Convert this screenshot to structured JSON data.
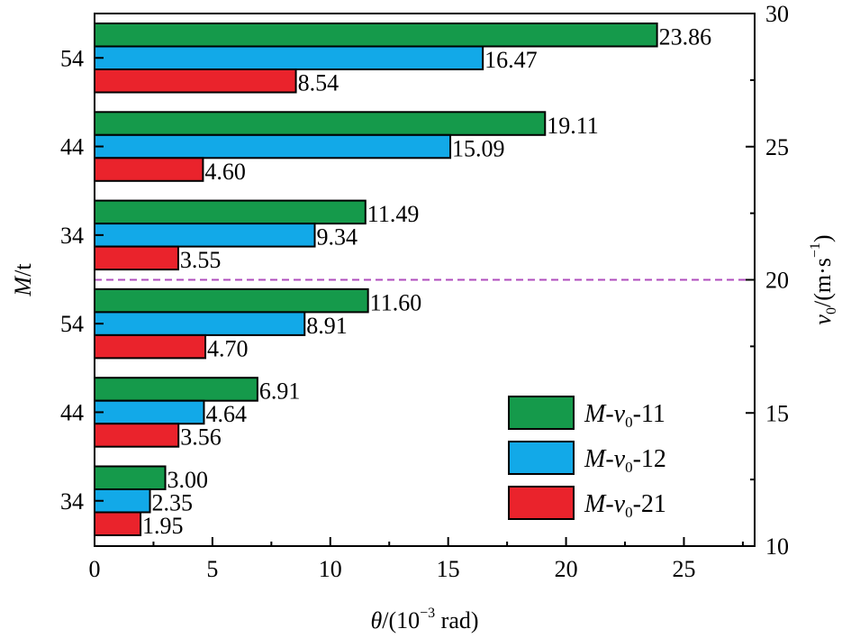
{
  "chart_data": {
    "type": "bar",
    "orientation": "horizontal",
    "groups": [
      "34",
      "44",
      "54",
      "34",
      "44",
      "54"
    ],
    "series": [
      {
        "name": "M-v0-11",
        "color": "#159a4b",
        "values": [
          3.0,
          6.91,
          11.6,
          11.49,
          19.11,
          23.86
        ]
      },
      {
        "name": "M-v0-12",
        "color": "#12a9e8",
        "values": [
          2.35,
          4.64,
          8.91,
          9.34,
          15.09,
          16.47
        ]
      },
      {
        "name": "M-v0-21",
        "color": "#ea232c",
        "values": [
          1.95,
          3.56,
          4.7,
          3.55,
          4.6,
          8.54
        ]
      }
    ],
    "value_labels": {
      "M-v0-11": [
        "3.00",
        "6.91",
        "11.60",
        "11.49",
        "19.11",
        "23.86"
      ],
      "M-v0-12": [
        "2.35",
        "4.64",
        "8.91",
        "9.34",
        "15.09",
        "16.47"
      ],
      "M-v0-21": [
        "1.95",
        "3.56",
        "4.70",
        "3.55",
        "4.60",
        "8.54"
      ]
    },
    "x_axis": {
      "range": [
        0,
        28
      ],
      "ticks": [
        0,
        5,
        10,
        15,
        20,
        25
      ],
      "tick_labels": [
        "0",
        "5",
        "10",
        "15",
        "20",
        "25"
      ]
    },
    "left_axis": {
      "label_main": "M",
      "label_rest": "/t"
    },
    "right_axis": {
      "range": [
        10,
        30
      ],
      "ticks": [
        10,
        15,
        20,
        25,
        30
      ],
      "tick_labels": [
        "10",
        "15",
        "20",
        "25",
        "30"
      ],
      "label_main": "v",
      "label_sub": "0",
      "label_rest": "/(m·s",
      "label_sup": "−1",
      "label_end": ")"
    },
    "x_label": {
      "main": "θ",
      "rest1": "/(10",
      "sup": "−3",
      "rest2": " rad)"
    },
    "divider": {
      "value": 20,
      "style": "dashed",
      "color": "#b04dbd"
    },
    "legend": {
      "placement": "bottom-right",
      "entries": [
        {
          "color": "#159a4b",
          "main": "M",
          "dash": "-",
          "v": "v",
          "sub": "0",
          "suffix": "-11"
        },
        {
          "color": "#12a9e8",
          "main": "M",
          "dash": "-",
          "v": "v",
          "sub": "0",
          "suffix": "-12"
        },
        {
          "color": "#ea232c",
          "main": "M",
          "dash": "-",
          "v": "v",
          "sub": "0",
          "suffix": "-21"
        }
      ]
    },
    "grid": false
  }
}
